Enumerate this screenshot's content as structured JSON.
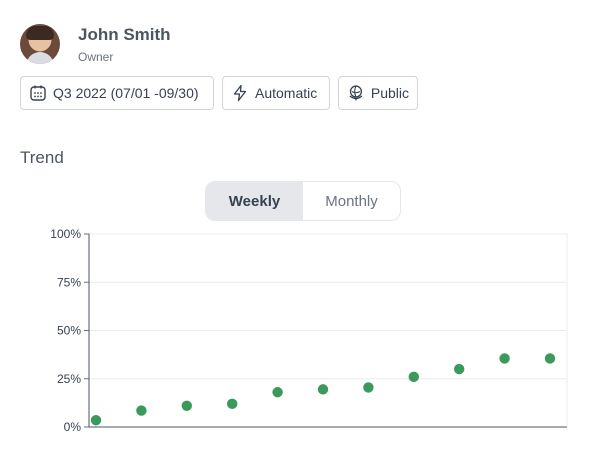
{
  "owner": {
    "name": "John Smith",
    "role": "Owner"
  },
  "chips": [
    {
      "label": "Q3 2022 (07/01 -09/30)",
      "icon": "calendar-icon"
    },
    {
      "label": "Automatic",
      "icon": "lightning-icon"
    },
    {
      "label": "Public",
      "icon": "globe-icon"
    }
  ],
  "section": {
    "title": "Trend"
  },
  "toggle": {
    "weekly": "Weekly",
    "monthly": "Monthly",
    "active": "weekly"
  },
  "chart_data": {
    "type": "scatter",
    "title": "",
    "xlabel": "",
    "ylabel": "",
    "ylim": [
      0,
      100
    ],
    "yticks": [
      "0%",
      "25%",
      "50%",
      "75%",
      "100%"
    ],
    "grid": true,
    "legend": "none",
    "color": "#3a9a5b",
    "x": [
      1,
      2,
      3,
      4,
      5,
      6,
      7,
      8,
      9,
      10,
      11
    ],
    "values": [
      3.5,
      8.5,
      11,
      12,
      18,
      19.5,
      20.5,
      26,
      30,
      35.5,
      35.5
    ]
  }
}
